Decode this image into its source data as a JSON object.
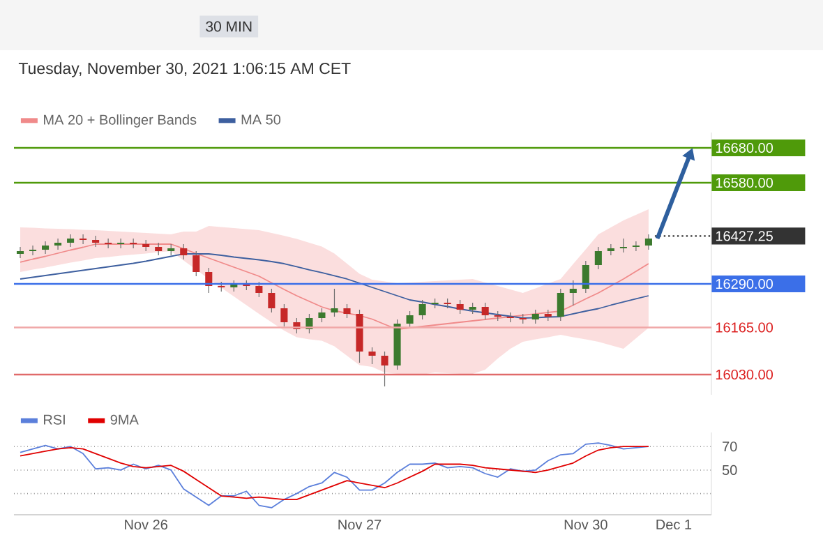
{
  "chart_data": [
    {
      "type": "candlestick",
      "subtitle": "30 MIN",
      "annotations": [
        "Tuesday, November 30, 2021 1:06:15 AM CET"
      ],
      "categories": [
        null,
        null,
        null,
        null,
        null,
        null,
        null,
        null,
        null,
        null,
        null,
        null,
        null,
        null,
        null,
        null,
        null,
        null,
        null,
        null,
        null,
        null,
        null,
        null,
        null,
        null,
        null,
        null,
        null,
        null,
        null,
        null,
        null,
        null,
        null,
        null,
        null,
        null,
        null,
        null,
        null,
        null,
        null,
        null,
        null,
        null,
        null,
        null,
        null,
        null,
        null,
        null,
        null,
        null,
        null,
        null
      ],
      "ohlc": [
        [
          16376,
          16396,
          16364,
          16384
        ],
        [
          16384,
          16400,
          16372,
          16388
        ],
        [
          16388,
          16412,
          16376,
          16400
        ],
        [
          16400,
          16420,
          16388,
          16408
        ],
        [
          16408,
          16432,
          16396,
          16420
        ],
        [
          16420,
          16432,
          16404,
          16416
        ],
        [
          16416,
          16428,
          16396,
          16408
        ],
        [
          16408,
          16420,
          16392,
          16404
        ],
        [
          16404,
          16420,
          16392,
          16408
        ],
        [
          16408,
          16420,
          16392,
          16404
        ],
        [
          16404,
          16416,
          16384,
          16396
        ],
        [
          16396,
          16408,
          16372,
          16384
        ],
        [
          16384,
          16404,
          16372,
          16392
        ],
        [
          16392,
          16404,
          16360,
          16372
        ],
        [
          16372,
          16384,
          16312,
          16324
        ],
        [
          16324,
          16336,
          16264,
          16284
        ],
        [
          16284,
          16296,
          16268,
          16280
        ],
        [
          16280,
          16300,
          16268,
          16288
        ],
        [
          16288,
          16300,
          16272,
          16284
        ],
        [
          16284,
          16296,
          16252,
          16264
        ],
        [
          16264,
          16276,
          16208,
          16220
        ],
        [
          16220,
          16232,
          16168,
          16180
        ],
        [
          16180,
          16192,
          16148,
          16160
        ],
        [
          16160,
          16204,
          16148,
          16192
        ],
        [
          16192,
          16220,
          16180,
          16208
        ],
        [
          16208,
          16276,
          16196,
          16220
        ],
        [
          16220,
          16232,
          16192,
          16204
        ],
        [
          16204,
          16216,
          16064,
          16096
        ],
        [
          16096,
          16108,
          16060,
          16084
        ],
        [
          16084,
          16096,
          15996,
          16056
        ],
        [
          16056,
          16188,
          16044,
          16176
        ],
        [
          16176,
          16212,
          16164,
          16200
        ],
        [
          16200,
          16244,
          16188,
          16232
        ],
        [
          16232,
          16248,
          16220,
          16236
        ],
        [
          16236,
          16248,
          16220,
          16232
        ],
        [
          16232,
          16244,
          16204,
          16216
        ],
        [
          16216,
          16236,
          16204,
          16224
        ],
        [
          16224,
          16236,
          16188,
          16200
        ],
        [
          16200,
          16212,
          16184,
          16196
        ],
        [
          16196,
          16208,
          16180,
          16192
        ],
        [
          16192,
          16204,
          16176,
          16188
        ],
        [
          16188,
          16216,
          16176,
          16204
        ],
        [
          16204,
          16216,
          16184,
          16196
        ],
        [
          16196,
          16276,
          16184,
          16264
        ],
        [
          16264,
          16300,
          16228,
          16276
        ],
        [
          16276,
          16356,
          16264,
          16344
        ],
        [
          16344,
          16396,
          16332,
          16384
        ],
        [
          16384,
          16404,
          16372,
          16392
        ],
        [
          16392,
          16420,
          16380,
          16396
        ],
        [
          16396,
          16412,
          16384,
          16400
        ],
        [
          16400,
          16432,
          16388,
          16420
        ],
        null,
        null,
        null,
        null,
        null
      ],
      "series": [
        {
          "type": "line",
          "name": "MA 20 + Bollinger Bands",
          "color": "#f08a8a",
          "values": [
            16352,
            16361,
            16369,
            16378,
            16387,
            16395,
            16404,
            16404,
            16404,
            16404,
            16404,
            16404,
            16404,
            16391,
            16377,
            16364,
            16351,
            16338,
            16325,
            16312,
            16293,
            16274,
            16256,
            16240,
            16224,
            16213,
            16206,
            16199,
            16189,
            16174,
            16160,
            16164,
            16168,
            16172,
            16176,
            16180,
            16184,
            16188,
            16192,
            16196,
            16200,
            16204,
            16208,
            16212,
            16229,
            16247,
            16264,
            16284,
            16304,
            16326,
            16348,
            null,
            null,
            null,
            null,
            null
          ],
          "lower": [
            16324,
            16331,
            16337,
            16344,
            16351,
            16357,
            16364,
            16367,
            16371,
            16374,
            16377,
            16381,
            16384,
            16357,
            16331,
            16304,
            16279,
            16254,
            16229,
            16204,
            16180,
            16156,
            16137,
            16131,
            16127,
            16111,
            16084,
            16057,
            16052,
            16036,
            16032,
            16030,
            16030,
            16036,
            16034,
            16032,
            16032,
            16044,
            16076,
            16104,
            16124,
            16131,
            16137,
            16144,
            16137,
            16131,
            16124,
            16114,
            16104,
            16134,
            16164,
            null,
            null,
            null,
            null,
            null
          ],
          "upper": [
            16452,
            16451,
            16449,
            16448,
            16447,
            16445,
            16444,
            16442,
            16440,
            16438,
            16436,
            16434,
            16432,
            16440,
            16440,
            16456,
            16453,
            16450,
            16447,
            16444,
            16436,
            16428,
            16419,
            16408,
            16397,
            16377,
            16348,
            16319,
            16302,
            16297,
            16292,
            16294,
            16296,
            16298,
            16300,
            16302,
            16304,
            16294,
            16284,
            16274,
            16264,
            16277,
            16291,
            16304,
            16347,
            16389,
            16432,
            16452,
            16472,
            16488,
            16504,
            null,
            null,
            null,
            null,
            null
          ]
        },
        {
          "type": "line",
          "name": "MA 50",
          "color": "#3d5f9f",
          "values": [
            16304,
            16309,
            16314,
            16319,
            16324,
            16329,
            16334,
            16339,
            16344,
            16349,
            16355,
            16362,
            16369,
            16376,
            16376,
            16376,
            16372,
            16367,
            16363,
            16359,
            16354,
            16348,
            16339,
            16330,
            16322,
            16313,
            16304,
            16292,
            16280,
            16268,
            16256,
            16244,
            16238,
            16231,
            16225,
            16218,
            16212,
            16207,
            16202,
            16197,
            16192,
            16193,
            16195,
            16196,
            16204,
            16212,
            16219,
            16229,
            16238,
            16247,
            16256,
            null,
            null,
            null,
            null,
            null
          ]
        }
      ],
      "ylim": [
        15972,
        16724
      ],
      "tick_labels": false,
      "legend": "top left",
      "ref_lines": [
        {
          "axis": "y",
          "value": 16680,
          "label": "16680.00",
          "color": "#4f9a0a",
          "line_style": "solid"
        },
        {
          "axis": "y",
          "value": 16580,
          "label": "16580.00",
          "color": "#4f9a0a",
          "line_style": "solid"
        },
        {
          "axis": "y",
          "value": 16427.25,
          "label": "16427.25",
          "color": "#333333",
          "line_style": "dotted"
        },
        {
          "axis": "y",
          "value": 16290,
          "label": "16290.00",
          "color": "#3b6fe8",
          "line_style": "solid"
        },
        {
          "axis": "y",
          "value": 16165,
          "label": "16165.00",
          "color": "#f0a8a8",
          "line_style": "solid"
        },
        {
          "axis": "y",
          "value": 16030,
          "label": "16030.00",
          "color": "#e06a6a",
          "line_style": "solid"
        }
      ]
    },
    {
      "type": "line",
      "categories": [
        null,
        null,
        null,
        null,
        null,
        null,
        null,
        null,
        null,
        null,
        "Nov 26",
        null,
        null,
        null,
        null,
        null,
        null,
        null,
        null,
        null,
        null,
        null,
        null,
        null,
        null,
        null,
        null,
        "Nov 27",
        null,
        null,
        null,
        null,
        null,
        null,
        null,
        null,
        null,
        null,
        null,
        null,
        null,
        null,
        null,
        null,
        null,
        "Nov 30",
        null,
        null,
        null,
        null,
        null,
        null,
        "Dec 1",
        null,
        null,
        null
      ],
      "series": [
        {
          "name": "RSI",
          "color": "#5b7fdb",
          "values": [
            65,
            68,
            71,
            68,
            70,
            64,
            51,
            52,
            50,
            55,
            51,
            54,
            50,
            34,
            27,
            20,
            28,
            28,
            32,
            20,
            18,
            25,
            30,
            36,
            39,
            48,
            44,
            33,
            33,
            39,
            48,
            55,
            55,
            56,
            52,
            53,
            52,
            47,
            44,
            51,
            49,
            50,
            58,
            63,
            64,
            72,
            73,
            71,
            68,
            69,
            70,
            null,
            null,
            null,
            null,
            null
          ]
        },
        {
          "name": "9MA",
          "color": "#e00000",
          "values": [
            62,
            64,
            66,
            68,
            69,
            68,
            64,
            60,
            56,
            53,
            52,
            53,
            54,
            49,
            42,
            35,
            28,
            27,
            26,
            27,
            26,
            25,
            25,
            29,
            33,
            37,
            41,
            39,
            37,
            35,
            39,
            44,
            49,
            55,
            55,
            55,
            54,
            52,
            51,
            50,
            49,
            48,
            50,
            53,
            56,
            62,
            67,
            69,
            70,
            70,
            70,
            null,
            null,
            null,
            null,
            null
          ]
        }
      ],
      "ylim": [
        12,
        82
      ],
      "yticks": [
        {
          "value": 30,
          "label": null
        },
        50,
        70
      ],
      "grid": "y",
      "legend": "top left",
      "line_style": "solid",
      "marker": "none"
    }
  ]
}
